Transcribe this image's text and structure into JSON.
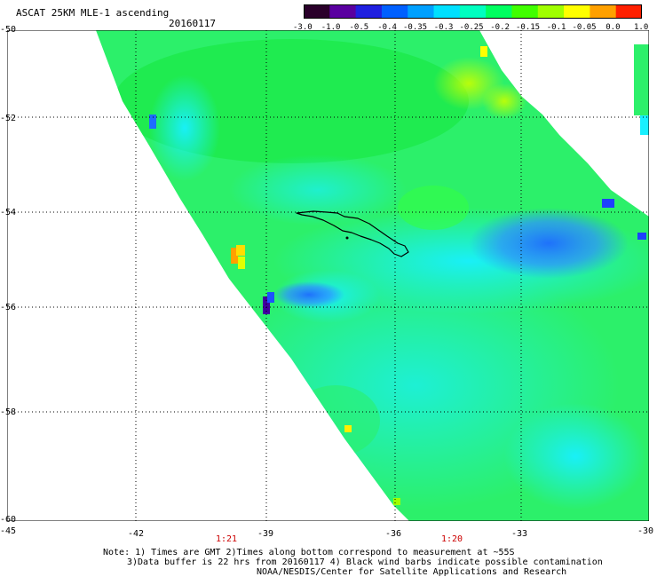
{
  "header": {
    "title": "ASCAT 25KM MLE-1 ascending",
    "date": "20160117"
  },
  "colorbar": {
    "labels": [
      "-3.0",
      "-1.0",
      "-0.5",
      "-0.4",
      "-0.35",
      "-0.3",
      "-0.25",
      "-0.2",
      "-0.15",
      "-0.1",
      "-0.05",
      "0.0",
      "1.0"
    ],
    "colors": [
      "#2a002a",
      "#5a00a0",
      "#2020e0",
      "#0060ff",
      "#00a0ff",
      "#00e0ff",
      "#00ffc0",
      "#00ff60",
      "#40ff00",
      "#a0ff00",
      "#ffff00",
      "#ffa000",
      "#ff2000"
    ]
  },
  "axes": {
    "lat_labels": [
      "-50",
      "-52",
      "-54",
      "-56",
      "-58",
      "-60"
    ],
    "lon_labels": [
      "-45",
      "-42",
      "-39",
      "-36",
      "-33",
      "-30"
    ],
    "times": [
      {
        "label": "1:21",
        "lon": -40.1
      },
      {
        "label": "1:20",
        "lon": -35.0
      }
    ]
  },
  "notes": [
    "Note: 1) Times are GMT 2)Times along bottom correspond to measurement at ~55S",
    "3)Data buffer is 22 hrs from 20160117 4) Black wind barbs indicate possible contamination",
    "NOAA/NESDIS/Center for Satellite Applications and Research"
  ]
}
